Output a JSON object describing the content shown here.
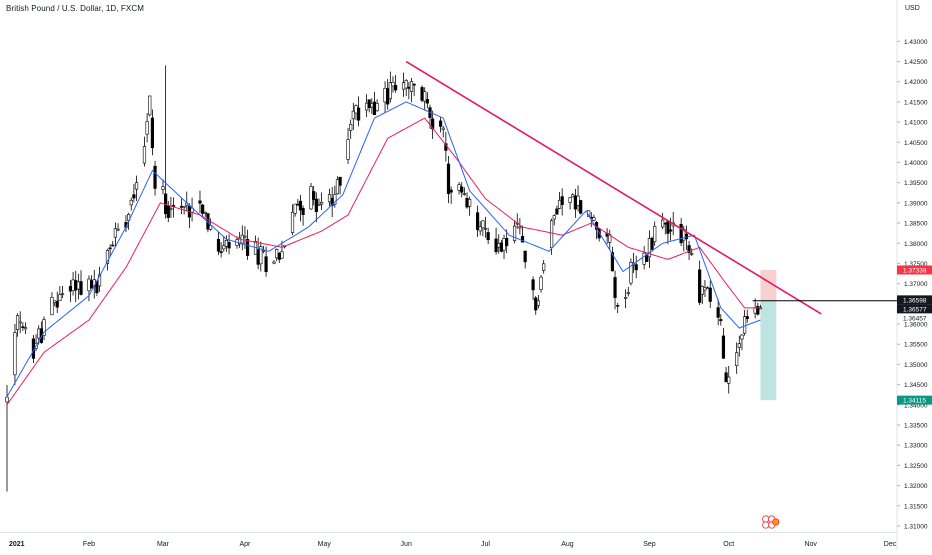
{
  "chart_title": "British Pound / U.S. Dollar, 1D, FXCM",
  "colors": {
    "up": "#ffffff",
    "down": "#000000",
    "wick": "#000000",
    "ema_fast": "#2962ff",
    "ema_slow": "#e91e63",
    "trendline": "#e6195e",
    "stop_zone": "#f8c8c8",
    "target_zone": "#b2dfdb",
    "price_badge_red": "#f23645",
    "price_badge_black": "#131722",
    "price_badge_green": "#089981",
    "axis_text": "#131722"
  },
  "chart_data": {
    "type": "candlestick",
    "symbol": "British Pound / U.S. Dollar",
    "interval": "1D",
    "source": "FXCM",
    "currency_label": "USD",
    "ylim": [
      1.3085,
      1.4385
    ],
    "y_ticks": [
      "1.31000",
      "1.31500",
      "1.32000",
      "1.32500",
      "1.33000",
      "1.33500",
      "1.34000",
      "1.34500",
      "1.35000",
      "1.35500",
      "1.36000",
      "1.36500",
      "1.37000",
      "1.37500",
      "1.38000",
      "1.38500",
      "1.39000",
      "1.39500",
      "1.40000",
      "1.40500",
      "1.41000",
      "1.41500",
      "1.42000",
      "1.42500",
      "1.43000"
    ],
    "x_ticks": [
      {
        "label": "2021",
        "date": "2021-01-01",
        "bold": true
      },
      {
        "label": "Feb",
        "date": "2021-02-01"
      },
      {
        "label": "Mar",
        "date": "2021-03-01"
      },
      {
        "label": "Apr",
        "date": "2021-04-01"
      },
      {
        "label": "May",
        "date": "2021-05-01"
      },
      {
        "label": "Jun",
        "date": "2021-06-01"
      },
      {
        "label": "Jul",
        "date": "2021-07-01"
      },
      {
        "label": "Aug",
        "date": "2021-08-01"
      },
      {
        "label": "Sep",
        "date": "2021-09-01"
      },
      {
        "label": "Oct",
        "date": "2021-10-01"
      },
      {
        "label": "Nov",
        "date": "2021-11-01"
      },
      {
        "label": "Dec",
        "date": "2021-12-01"
      }
    ],
    "price_path": [
      [
        "2021-01-01",
        1.341
      ],
      [
        "2021-01-05",
        1.36
      ],
      [
        "2021-01-11",
        1.354
      ],
      [
        "2021-01-18",
        1.364
      ],
      [
        "2021-01-25",
        1.37
      ],
      [
        "2021-01-29",
        1.37
      ],
      [
        "2021-02-04",
        1.369
      ],
      [
        "2021-02-10",
        1.381
      ],
      [
        "2021-02-16",
        1.389
      ],
      [
        "2021-02-22",
        1.405
      ],
      [
        "2021-02-24",
        1.415
      ],
      [
        "2021-02-26",
        1.394
      ],
      [
        "2021-03-03",
        1.39
      ],
      [
        "2021-03-09",
        1.388
      ],
      [
        "2021-03-15",
        1.392
      ],
      [
        "2021-03-22",
        1.377
      ],
      [
        "2021-03-26",
        1.379
      ],
      [
        "2021-04-01",
        1.38
      ],
      [
        "2021-04-08",
        1.376
      ],
      [
        "2021-04-15",
        1.378
      ],
      [
        "2021-04-21",
        1.39
      ],
      [
        "2021-04-28",
        1.391
      ],
      [
        "2021-05-04",
        1.389
      ],
      [
        "2021-05-07",
        1.396
      ],
      [
        "2021-05-11",
        1.411
      ],
      [
        "2021-05-17",
        1.415
      ],
      [
        "2021-05-24",
        1.416
      ],
      [
        "2021-05-27",
        1.419
      ],
      [
        "2021-06-01",
        1.418
      ],
      [
        "2021-06-07",
        1.417
      ],
      [
        "2021-06-11",
        1.411
      ],
      [
        "2021-06-14",
        1.412
      ],
      [
        "2021-06-17",
        1.394
      ],
      [
        "2021-06-21",
        1.393
      ],
      [
        "2021-06-25",
        1.388
      ],
      [
        "2021-06-29",
        1.384
      ],
      [
        "2021-07-02",
        1.382
      ],
      [
        "2021-07-07",
        1.379
      ],
      [
        "2021-07-13",
        1.384
      ],
      [
        "2021-07-20",
        1.364
      ],
      [
        "2021-07-23",
        1.375
      ],
      [
        "2021-07-29",
        1.392
      ],
      [
        "2021-08-05",
        1.39
      ],
      [
        "2021-08-11",
        1.385
      ],
      [
        "2021-08-16",
        1.384
      ],
      [
        "2021-08-20",
        1.363
      ],
      [
        "2021-08-25",
        1.372
      ],
      [
        "2021-08-31",
        1.377
      ],
      [
        "2021-09-03",
        1.384
      ],
      [
        "2021-09-08",
        1.385
      ],
      [
        "2021-09-14",
        1.383
      ],
      [
        "2021-09-20",
        1.368
      ],
      [
        "2021-09-23",
        1.369
      ],
      [
        "2021-09-28",
        1.36
      ],
      [
        "2021-09-30",
        1.344
      ],
      [
        "2021-10-04",
        1.354
      ],
      [
        "2021-10-08",
        1.361
      ],
      [
        "2021-10-12",
        1.364
      ],
      [
        "2021-10-13",
        1.364
      ]
    ],
    "ema_fast_path": [
      [
        "2021-01-01",
        1.342
      ],
      [
        "2021-01-15",
        1.358
      ],
      [
        "2021-02-01",
        1.367
      ],
      [
        "2021-02-15",
        1.384
      ],
      [
        "2021-02-25",
        1.398
      ],
      [
        "2021-03-10",
        1.39
      ],
      [
        "2021-03-25",
        1.381
      ],
      [
        "2021-04-10",
        1.378
      ],
      [
        "2021-04-25",
        1.384
      ],
      [
        "2021-05-08",
        1.392
      ],
      [
        "2021-05-20",
        1.411
      ],
      [
        "2021-06-01",
        1.415
      ],
      [
        "2021-06-15",
        1.411
      ],
      [
        "2021-06-25",
        1.393
      ],
      [
        "2021-07-10",
        1.382
      ],
      [
        "2021-07-25",
        1.378
      ],
      [
        "2021-08-08",
        1.388
      ],
      [
        "2021-08-22",
        1.373
      ],
      [
        "2021-09-06",
        1.38
      ],
      [
        "2021-09-18",
        1.382
      ],
      [
        "2021-09-28",
        1.364
      ],
      [
        "2021-10-05",
        1.359
      ],
      [
        "2021-10-13",
        1.361
      ]
    ],
    "ema_slow_path": [
      [
        "2021-01-01",
        1.34
      ],
      [
        "2021-01-15",
        1.353
      ],
      [
        "2021-02-01",
        1.361
      ],
      [
        "2021-02-15",
        1.374
      ],
      [
        "2021-02-28",
        1.39
      ],
      [
        "2021-03-15",
        1.387
      ],
      [
        "2021-03-30",
        1.381
      ],
      [
        "2021-04-15",
        1.379
      ],
      [
        "2021-04-30",
        1.383
      ],
      [
        "2021-05-10",
        1.387
      ],
      [
        "2021-05-25",
        1.406
      ],
      [
        "2021-06-08",
        1.411
      ],
      [
        "2021-06-20",
        1.401
      ],
      [
        "2021-07-01",
        1.391
      ],
      [
        "2021-07-15",
        1.384
      ],
      [
        "2021-07-30",
        1.382
      ],
      [
        "2021-08-10",
        1.385
      ],
      [
        "2021-08-24",
        1.379
      ],
      [
        "2021-09-08",
        1.376
      ],
      [
        "2021-09-20",
        1.379
      ],
      [
        "2021-09-30",
        1.37
      ],
      [
        "2021-10-07",
        1.364
      ],
      [
        "2021-10-13",
        1.364
      ]
    ],
    "trendline": {
      "start": [
        "2021-06-01",
        1.425
      ],
      "end": [
        "2021-11-05",
        1.3625
      ]
    },
    "horizontal_line": {
      "price": 1.36577,
      "start": "2021-10-10"
    },
    "position_box": {
      "start": "2021-10-13",
      "end": "2021-10-19",
      "entry": 1.36577,
      "stop": 1.37338,
      "target": 1.34115
    },
    "price_badges": [
      {
        "text": "1.37338",
        "price": 1.37338,
        "kind": "red"
      },
      {
        "text": "1.36598",
        "price": 1.36598,
        "kind": "black"
      },
      {
        "text": "1.36577",
        "price": 1.36577,
        "kind": "black"
      },
      {
        "text": "1.36457",
        "price": 1.36457,
        "kind": "none"
      },
      {
        "text": "1.34115",
        "price": 1.34115,
        "kind": "green"
      }
    ]
  }
}
